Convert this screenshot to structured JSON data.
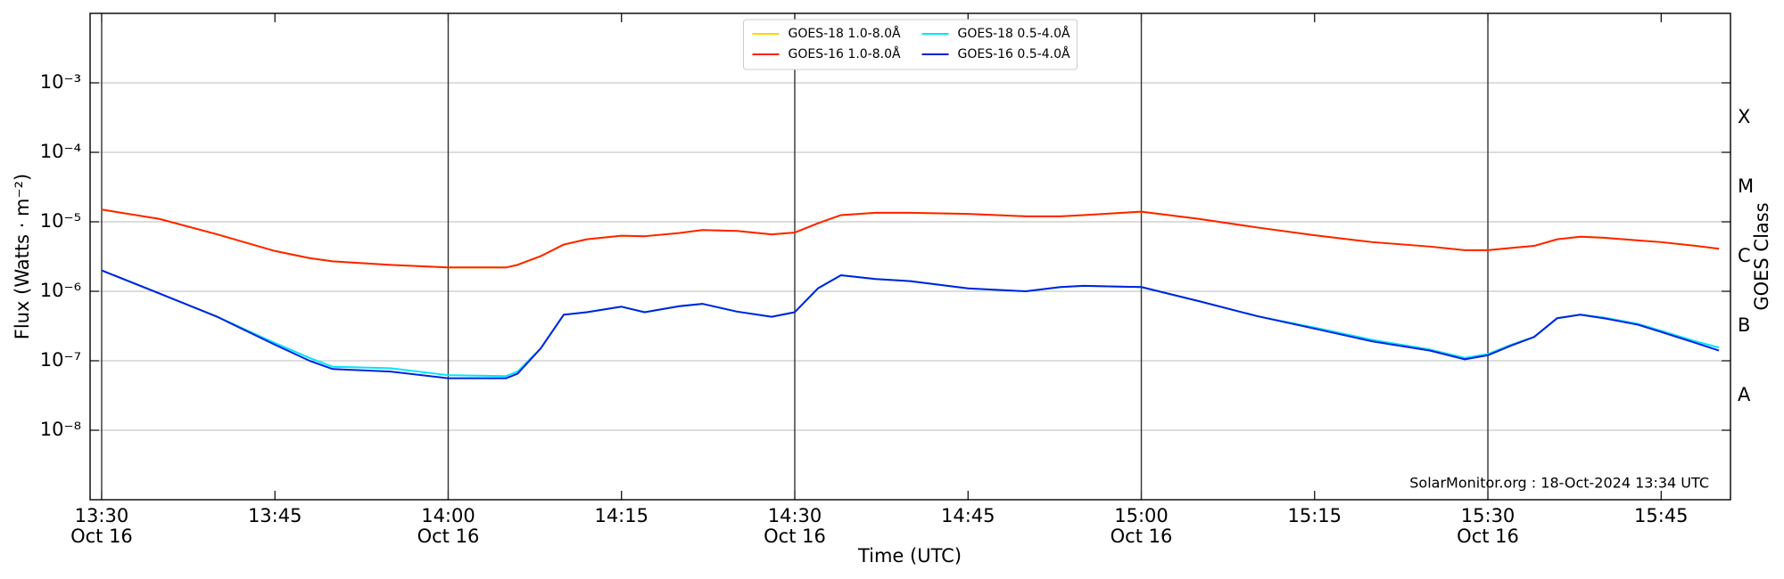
{
  "chart_data": {
    "type": "line",
    "x_label": "Time (UTC)",
    "y_label": "Flux (Watts · m⁻²)",
    "y2_label": "GOES Class",
    "annotation": "SolarMonitor.org : 18-Oct-2024 13:34 UTC",
    "log_y": true,
    "grid": true,
    "legend": "upper center",
    "xlim": [
      "13:29",
      "15:51"
    ],
    "xticks": [
      "13:30",
      "13:45",
      "14:00",
      "14:15",
      "14:30",
      "14:45",
      "15:00",
      "15:15",
      "15:30",
      "15:45"
    ],
    "xtick_dates": [
      "Oct 16",
      null,
      "Oct 16",
      null,
      "Oct 16",
      null,
      "Oct 16",
      null,
      "Oct 16",
      null
    ],
    "ylim": [
      1e-09,
      0.01
    ],
    "yticks": [
      {
        "value": 1e-08,
        "label": "10⁻⁸"
      },
      {
        "value": 1e-07,
        "label": "10⁻⁷"
      },
      {
        "value": 1e-06,
        "label": "10⁻⁶"
      },
      {
        "value": 1e-05,
        "label": "10⁻⁵"
      },
      {
        "value": 0.0001,
        "label": "10⁻⁴"
      },
      {
        "value": 0.001,
        "label": "10⁻³"
      }
    ],
    "y2lim": [
      1e-09,
      0.01
    ],
    "y2ticks": [
      {
        "value": 3.162e-08,
        "label": "A"
      },
      {
        "value": 3.162e-07,
        "label": "B"
      },
      {
        "value": 3.162e-06,
        "label": "C"
      },
      {
        "value": 3.162e-05,
        "label": "M"
      },
      {
        "value": 0.0003162,
        "label": "X"
      }
    ],
    "x": [
      "13:30",
      "13:35",
      "13:40",
      "13:45",
      "13:48",
      "13:50",
      "13:55",
      "14:00",
      "14:05",
      "14:06",
      "14:08",
      "14:10",
      "14:12",
      "14:15",
      "14:17",
      "14:20",
      "14:22",
      "14:25",
      "14:28",
      "14:30",
      "14:32",
      "14:34",
      "14:37",
      "14:40",
      "14:45",
      "14:50",
      "14:53",
      "14:55",
      "15:00",
      "15:05",
      "15:10",
      "15:15",
      "15:20",
      "15:25",
      "15:28",
      "15:30",
      "15:32",
      "15:34",
      "15:36",
      "15:38",
      "15:40",
      "15:43",
      "15:45",
      "15:48",
      "15:50"
    ],
    "series": [
      {
        "name": "GOES-18 1.0-8.0Å",
        "color": "#ffd700",
        "values": [
          1.5e-05,
          1.1e-05,
          6.6e-06,
          3.8e-06,
          3e-06,
          2.7e-06,
          2.4e-06,
          2.2e-06,
          2.2e-06,
          2.4e-06,
          3.2e-06,
          4.7e-06,
          5.6e-06,
          6.3e-06,
          6.2e-06,
          6.9e-06,
          7.6e-06,
          7.4e-06,
          6.6e-06,
          7e-06,
          9.5e-06,
          1.25e-05,
          1.35e-05,
          1.35e-05,
          1.3e-05,
          1.2e-05,
          1.2e-05,
          1.25e-05,
          1.4e-05,
          1.1e-05,
          8.3e-06,
          6.4e-06,
          5.1e-06,
          4.4e-06,
          3.9e-06,
          3.9e-06,
          4.2e-06,
          4.5e-06,
          5.6e-06,
          6.1e-06,
          5.9e-06,
          5.4e-06,
          5.1e-06,
          4.5e-06,
          4.1e-06
        ]
      },
      {
        "name": "GOES-16 1.0-8.0Å",
        "color": "#ff2200",
        "values": [
          1.5e-05,
          1.1e-05,
          6.6e-06,
          3.8e-06,
          3e-06,
          2.7e-06,
          2.4e-06,
          2.2e-06,
          2.2e-06,
          2.4e-06,
          3.2e-06,
          4.7e-06,
          5.6e-06,
          6.3e-06,
          6.2e-06,
          6.9e-06,
          7.6e-06,
          7.4e-06,
          6.6e-06,
          7e-06,
          9.5e-06,
          1.25e-05,
          1.35e-05,
          1.35e-05,
          1.3e-05,
          1.2e-05,
          1.2e-05,
          1.25e-05,
          1.4e-05,
          1.1e-05,
          8.3e-06,
          6.4e-06,
          5.1e-06,
          4.4e-06,
          3.9e-06,
          3.9e-06,
          4.2e-06,
          4.5e-06,
          5.6e-06,
          6.1e-06,
          5.9e-06,
          5.4e-06,
          5.1e-06,
          4.5e-06,
          4.1e-06
        ]
      },
      {
        "name": "GOES-18 0.5-4.0Å",
        "color": "#00e5ff",
        "values": [
          2e-06,
          9.3e-07,
          4.3e-07,
          1.8e-07,
          1.1e-07,
          8.2e-08,
          7.8e-08,
          6.2e-08,
          6e-08,
          7e-08,
          1.5e-07,
          4.6e-07,
          5e-07,
          6e-07,
          5e-07,
          6.1e-07,
          6.6e-07,
          5.1e-07,
          4.3e-07,
          5e-07,
          1.1e-06,
          1.7e-06,
          1.5e-06,
          1.4e-06,
          1.1e-06,
          1e-06,
          1.15e-06,
          1.2e-06,
          1.15e-06,
          7.2e-07,
          4.4e-07,
          3e-07,
          2e-07,
          1.45e-07,
          1.1e-07,
          1.25e-07,
          1.7e-07,
          2.2e-07,
          4.1e-07,
          4.6e-07,
          4.2e-07,
          3.4e-07,
          2.7e-07,
          1.9e-07,
          1.55e-07
        ]
      },
      {
        "name": "GOES-16 0.5-4.0Å",
        "color": "#0022dd",
        "values": [
          2e-06,
          9.3e-07,
          4.3e-07,
          1.7e-07,
          1e-07,
          7.6e-08,
          7e-08,
          5.6e-08,
          5.6e-08,
          6.5e-08,
          1.5e-07,
          4.6e-07,
          5e-07,
          6e-07,
          5e-07,
          6.1e-07,
          6.6e-07,
          5.1e-07,
          4.3e-07,
          5e-07,
          1.1e-06,
          1.7e-06,
          1.5e-06,
          1.4e-06,
          1.1e-06,
          1e-06,
          1.15e-06,
          1.2e-06,
          1.15e-06,
          7.2e-07,
          4.4e-07,
          2.9e-07,
          1.9e-07,
          1.4e-07,
          1.05e-07,
          1.2e-07,
          1.65e-07,
          2.2e-07,
          4.1e-07,
          4.6e-07,
          4.1e-07,
          3.3e-07,
          2.6e-07,
          1.8e-07,
          1.4e-07
        ]
      }
    ]
  }
}
